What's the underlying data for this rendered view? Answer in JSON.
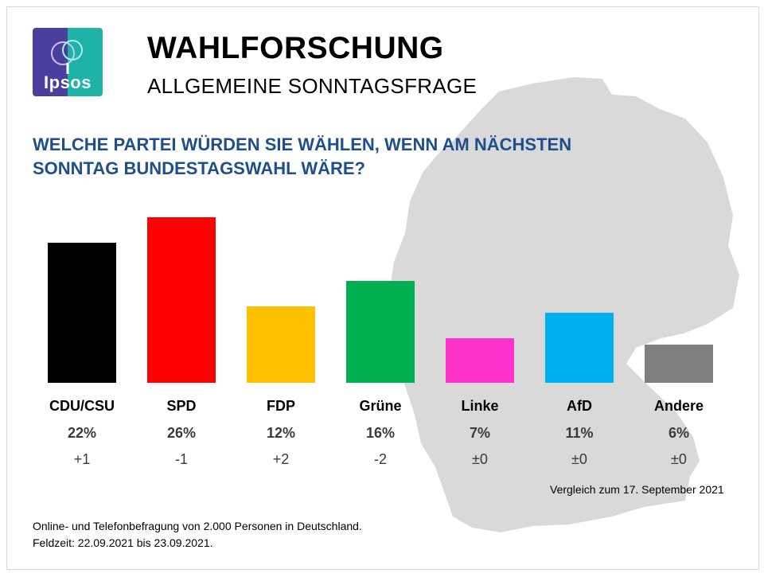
{
  "header": {
    "title": "WAHLFORSCHUNG",
    "subtitle": "ALLGEMEINE SONNTAGSFRAGE",
    "logo_text": "Ipsos"
  },
  "question": {
    "line1": "WELCHE PARTEI WÜRDEN SIE WÄHLEN, WENN AM NÄCHSTEN",
    "line2": "SONNTAG BUNDESTAGSWAHL WÄRE?"
  },
  "chart_data": {
    "type": "bar",
    "title": "WELCHE PARTEI WÜRDEN SIE WÄHLEN, WENN AM NÄCHSTEN SONNTAG BUNDESTAGSWAHL WÄRE?",
    "categories": [
      "CDU/CSU",
      "SPD",
      "FDP",
      "Grüne",
      "Linke",
      "AfD",
      "Andere"
    ],
    "values": [
      22,
      26,
      12,
      16,
      7,
      11,
      6
    ],
    "value_labels": [
      "22%",
      "26%",
      "12%",
      "16%",
      "7%",
      "11%",
      "6%"
    ],
    "changes": [
      "+1",
      "-1",
      "+2",
      "-2",
      "±0",
      "±0",
      "±0"
    ],
    "colors": [
      "#000000",
      "#ff0000",
      "#ffc000",
      "#00b050",
      "#ff33cc",
      "#00b0f0",
      "#7f7f7f"
    ],
    "xlabel": "",
    "ylabel": "",
    "ylim": [
      0,
      26
    ],
    "grid": false,
    "legend": "none"
  },
  "footer": {
    "comparison": "Vergleich  zum 17. September  2021",
    "method_line1": "Online-  und Telefonbefragung  von 2.000 Personen in Deutschland.",
    "method_line2": "Feldzeit: 22.09.2021 bis 23.09.2021."
  },
  "colors": {
    "question": "#1f4e8c",
    "map": "#d9d9d9",
    "logo_left": "#4a3f9c",
    "logo_right": "#1fb3a7"
  }
}
